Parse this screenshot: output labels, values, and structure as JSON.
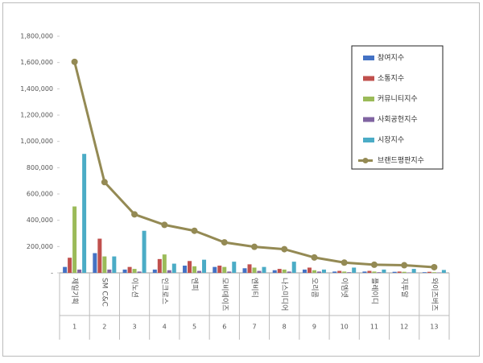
{
  "chart_data": {
    "type": "bar",
    "categories": [
      "제일기획",
      "SM C&C",
      "이노션",
      "인크로스",
      "엔피",
      "모비데이즈",
      "엔비티",
      "나스미디어",
      "오리콤",
      "이엠넷",
      "플레이디",
      "지투알",
      "와이즈버즈"
    ],
    "category_numbers": [
      1,
      2,
      3,
      4,
      5,
      6,
      7,
      8,
      9,
      10,
      11,
      12,
      13
    ],
    "series": [
      {
        "name": "참여지수",
        "type": "bar",
        "color": "#4472c4",
        "values": [
          45000,
          150000,
          25000,
          25000,
          55000,
          45000,
          35000,
          20000,
          25000,
          10000,
          10000,
          8000,
          5000
        ]
      },
      {
        "name": "소통지수",
        "type": "bar",
        "color": "#c0504d",
        "values": [
          115000,
          260000,
          45000,
          105000,
          90000,
          55000,
          65000,
          30000,
          40000,
          15000,
          15000,
          10000,
          8000
        ]
      },
      {
        "name": "커뮤니티지수",
        "type": "bar",
        "color": "#9bbb59",
        "values": [
          505000,
          125000,
          30000,
          140000,
          50000,
          45000,
          40000,
          25000,
          20000,
          10000,
          10000,
          8000,
          5000
        ]
      },
      {
        "name": "사회공헌지수",
        "type": "bar",
        "color": "#8064a2",
        "values": [
          25000,
          25000,
          10000,
          20000,
          15000,
          10000,
          15000,
          10000,
          10000,
          5000,
          5000,
          3000,
          3000
        ]
      },
      {
        "name": "시장지수",
        "type": "bar",
        "color": "#4bacc6",
        "values": [
          905000,
          125000,
          320000,
          70000,
          100000,
          85000,
          45000,
          85000,
          25000,
          40000,
          25000,
          30000,
          22000
        ]
      },
      {
        "name": "브랜드평판지수",
        "type": "line",
        "color": "#948a54",
        "values": [
          1605000,
          690000,
          445000,
          365000,
          320000,
          232000,
          198000,
          180000,
          117000,
          78000,
          62000,
          58000,
          43000
        ]
      }
    ],
    "ylim": [
      0,
      1800000
    ],
    "yticks": [
      {
        "value": 0,
        "label": "-"
      },
      {
        "value": 200000,
        "label": "200,000"
      },
      {
        "value": 400000,
        "label": "400,000"
      },
      {
        "value": 600000,
        "label": "600,000"
      },
      {
        "value": 800000,
        "label": "800,000"
      },
      {
        "value": 1000000,
        "label": "1,000,000"
      },
      {
        "value": 1200000,
        "label": "1,200,000"
      },
      {
        "value": 1400000,
        "label": "1,400,000"
      },
      {
        "value": 1600000,
        "label": "1,600,000"
      },
      {
        "value": 1800000,
        "label": "1,800,000"
      }
    ],
    "grid": false,
    "legend": "right"
  }
}
